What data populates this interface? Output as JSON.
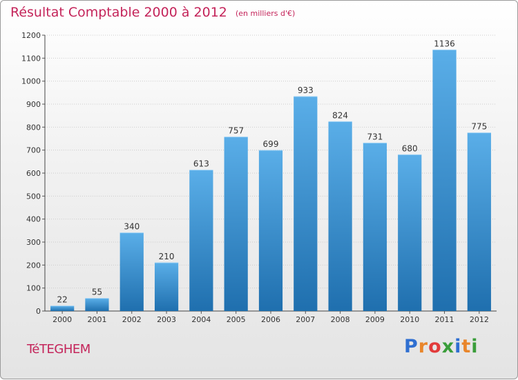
{
  "header": {
    "title": "Résultat Comptable 2000 à 2012",
    "subtitle": "(en milliers d'€)"
  },
  "footer": {
    "city": "TéTEGHEM",
    "logo_letters": [
      "P",
      "r",
      "o",
      "x",
      "i",
      "t",
      "i"
    ],
    "logo_colors": [
      "#2f6fd1",
      "#e9862b",
      "#e23b3b",
      "#3a9d3a",
      "#2f6fd1",
      "#e9862b",
      "#3a9d3a"
    ]
  },
  "colors": {
    "bar_light": "#5aaee8",
    "bar_dark": "#1f6fae",
    "grid": "#cccccc",
    "title": "#c4245a"
  },
  "chart_data": {
    "type": "bar",
    "categories": [
      "2000",
      "2001",
      "2002",
      "2003",
      "2004",
      "2005",
      "2006",
      "2007",
      "2008",
      "2009",
      "2010",
      "2011",
      "2012"
    ],
    "values": [
      22,
      55,
      340,
      210,
      613,
      757,
      699,
      933,
      824,
      731,
      680,
      1136,
      775
    ],
    "ylim": [
      0,
      1200
    ],
    "yticks": [
      0,
      100,
      200,
      300,
      400,
      500,
      600,
      700,
      800,
      900,
      1000,
      1100,
      1200
    ],
    "grid": true,
    "data_labels": true
  }
}
